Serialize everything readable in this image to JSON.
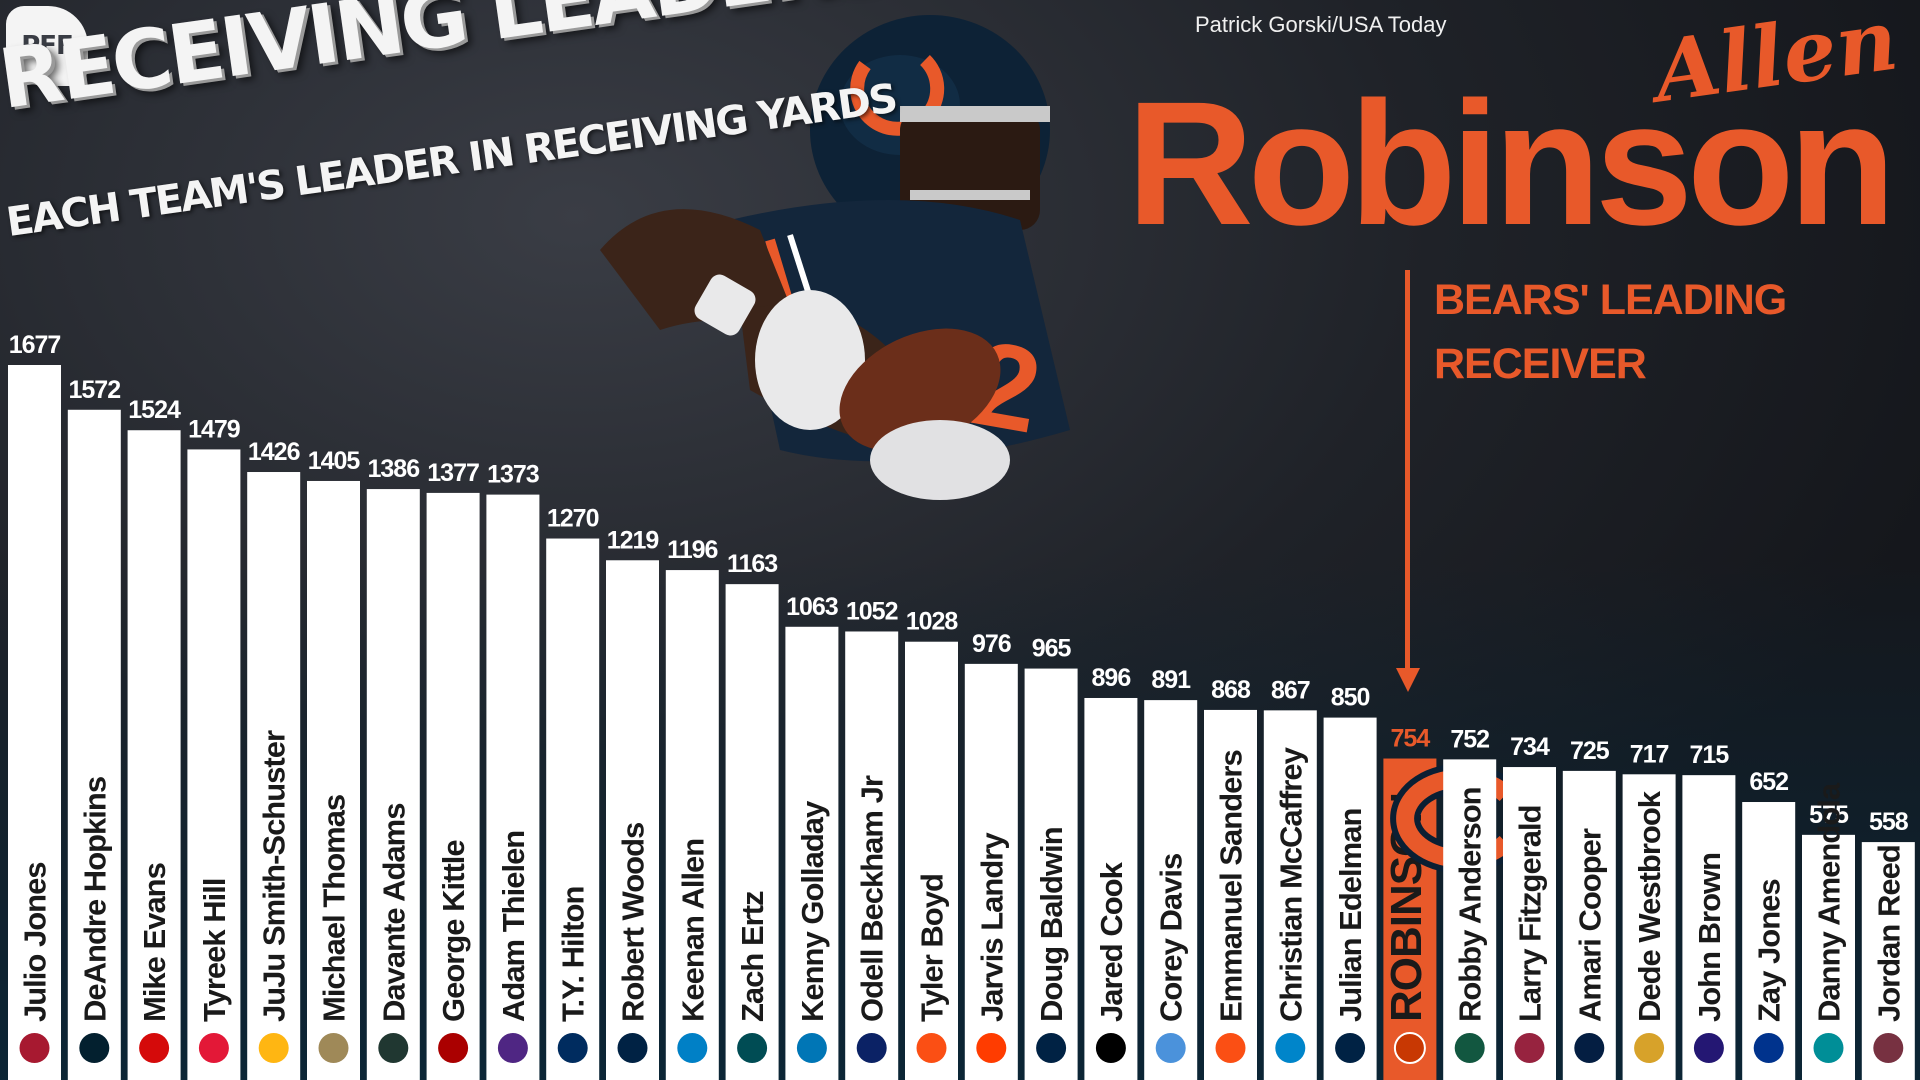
{
  "header": {
    "logo": "PFF",
    "title": "RECEIVING LEADERS",
    "subtitle": "EACH TEAM'S LEADER IN RECEIVING YARDS",
    "photo_credit": "Patrick Gorski/USA Today"
  },
  "feature": {
    "first_name": "Allen",
    "last_name": "Robinson",
    "caption_line1": "BEARS' LEADING",
    "caption_line2": "RECEIVER"
  },
  "colors": {
    "bar": "#ffffff",
    "highlight": "#e8592a",
    "label": "#1a1a1a"
  },
  "chart_data": {
    "type": "bar",
    "categories": [
      "Julio Jones",
      "DeAndre Hopkins",
      "Mike Evans",
      "Tyreek Hill",
      "JuJu Smith-Schuster",
      "Michael Thomas",
      "Davante Adams",
      "George Kittle",
      "Adam Thielen",
      "T.Y. Hilton",
      "Robert Woods",
      "Keenan Allen",
      "Zach Ertz",
      "Kenny Golladay",
      "Odell Beckham Jr",
      "Tyler Boyd",
      "Jarvis Landry",
      "Doug Baldwin",
      "Jared Cook",
      "Corey Davis",
      "Emmanuel Sanders",
      "Christian McCaffrey",
      "Julian Edelman",
      "ROBINSON",
      "Robby Anderson",
      "Larry Fitzgerald",
      "Amari Cooper",
      "Dede Westbrook",
      "John Brown",
      "Zay Jones",
      "Danny Amendola",
      "Jordan Reed"
    ],
    "values": [
      1677,
      1572,
      1524,
      1479,
      1426,
      1405,
      1386,
      1377,
      1373,
      1270,
      1219,
      1196,
      1163,
      1063,
      1052,
      1028,
      976,
      965,
      896,
      891,
      868,
      867,
      850,
      754,
      752,
      734,
      725,
      717,
      715,
      652,
      575,
      558
    ],
    "team_icons": [
      "falcons",
      "texans",
      "buccaneers",
      "chiefs",
      "steelers",
      "saints",
      "packers",
      "49ers",
      "vikings",
      "colts",
      "rams",
      "chargers",
      "eagles",
      "lions",
      "giants",
      "bengals",
      "browns",
      "seahawks",
      "raiders",
      "titans",
      "broncos",
      "panthers",
      "patriots",
      "bears",
      "jets",
      "cardinals",
      "cowboys",
      "jaguars",
      "ravens",
      "bills",
      "dolphins",
      "redskins"
    ],
    "highlight_index": 23,
    "title": "RECEIVING LEADERS",
    "subtitle": "EACH TEAM'S LEADER IN RECEIVING YARDS",
    "xlabel": "",
    "ylabel": "",
    "ylim": [
      0,
      1677
    ]
  }
}
